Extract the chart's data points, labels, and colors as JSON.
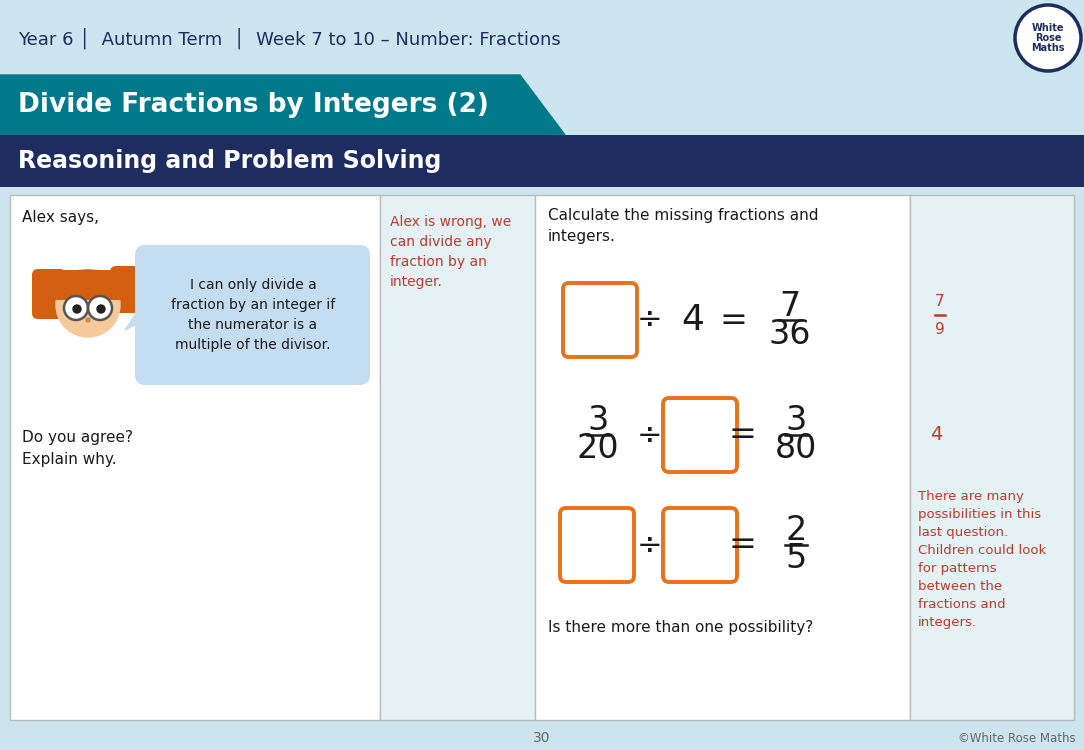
{
  "bg_color": "#cce5ee",
  "teal_banner_color": "#007a8a",
  "dark_navy": "#1e2d5f",
  "title_text": "Year 6 │  Autumn Term  │  Week 7 to 10 – Number: Fractions",
  "subtitle1": "Divide Fractions by Integers (2)",
  "subtitle2": "Reasoning and Problem Solving",
  "orange_color": "#e8711a",
  "red_answer_color": "#c0392b",
  "dark_text": "#1a1a1a",
  "light_panel_bg": "#e4f2f5",
  "white_panel_bg": "#ffffff",
  "border_color": "#bbbbbb",
  "bubble_color": "#c5ddf0"
}
